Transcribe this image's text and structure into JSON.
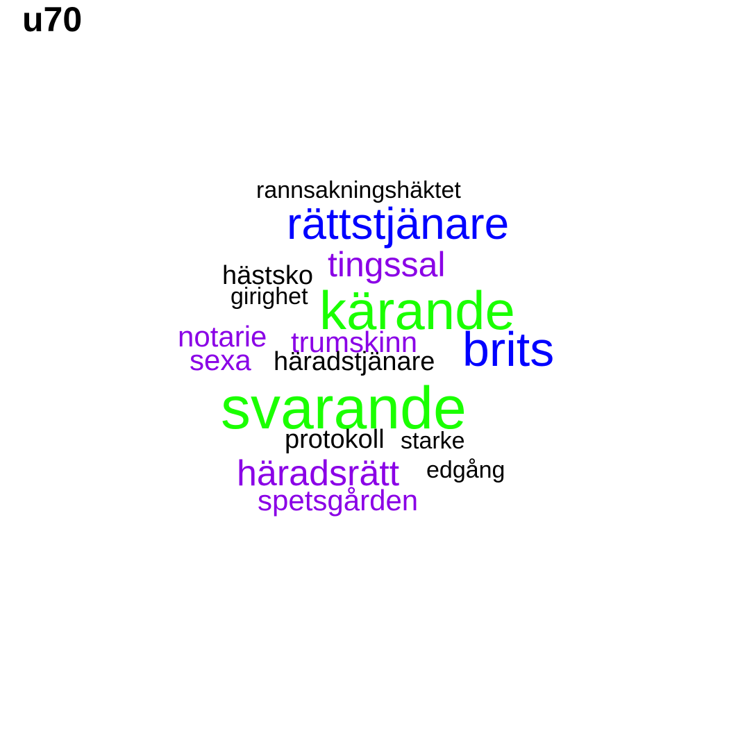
{
  "title": "u70",
  "words": [
    {
      "text": "rannsakningshäktet",
      "color": "#000000"
    },
    {
      "text": "rättstjänare",
      "color": "#0000ff"
    },
    {
      "text": "tingssal",
      "color": "#8a00e6"
    },
    {
      "text": "hästsko",
      "color": "#000000"
    },
    {
      "text": "girighet",
      "color": "#000000"
    },
    {
      "text": "kärande",
      "color": "#1aff00"
    },
    {
      "text": "notarie",
      "color": "#8a00e6"
    },
    {
      "text": "trumskinn",
      "color": "#8a00e6"
    },
    {
      "text": "brits",
      "color": "#0000ff"
    },
    {
      "text": "sexa",
      "color": "#8a00e6"
    },
    {
      "text": "häradstjänare",
      "color": "#000000"
    },
    {
      "text": "svarande",
      "color": "#1aff00"
    },
    {
      "text": "protokoll",
      "color": "#000000"
    },
    {
      "text": "starke",
      "color": "#000000"
    },
    {
      "text": "häradsrätt",
      "color": "#8a00e6"
    },
    {
      "text": "edgång",
      "color": "#000000"
    },
    {
      "text": "spetsgården",
      "color": "#8a00e6"
    }
  ]
}
